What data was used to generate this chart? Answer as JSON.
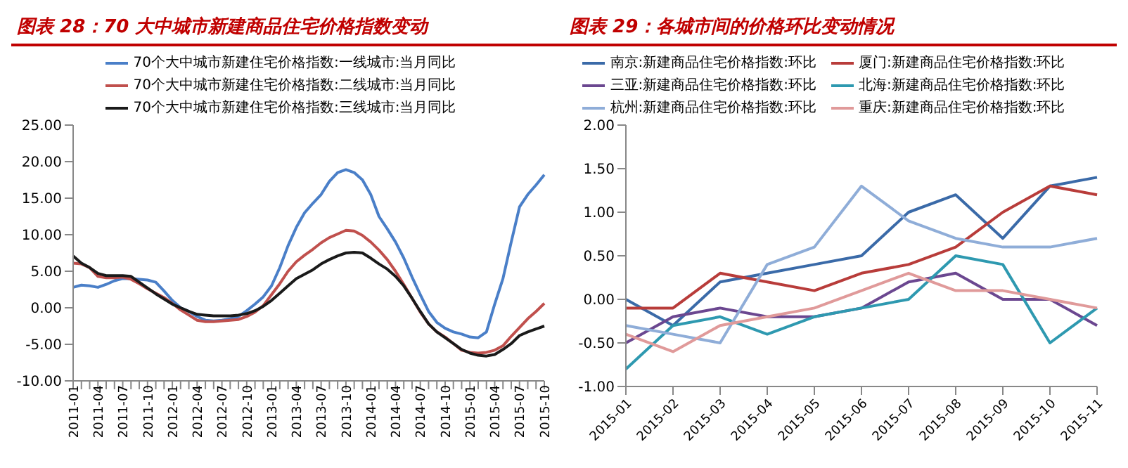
{
  "chart_data": [
    {
      "type": "line",
      "title": "图表 28：70 大中城市新建商品住宅价格指数变动",
      "categories": [
        "2011-01",
        null,
        null,
        "2011-04",
        null,
        null,
        "2011-07",
        null,
        null,
        "2011-10",
        null,
        null,
        "2012-01",
        null,
        null,
        "2012-04",
        null,
        null,
        "2012-07",
        null,
        null,
        "2012-10",
        null,
        null,
        "2013-01",
        null,
        null,
        "2013-04",
        null,
        null,
        "2013-07",
        null,
        null,
        "2013-10",
        null,
        null,
        "2014-01",
        null,
        null,
        "2014-04",
        null,
        null,
        "2014-07",
        null,
        null,
        "2014-10",
        null,
        null,
        "2015-01",
        null,
        null,
        "2015-04",
        null,
        null,
        "2015-07",
        null,
        null,
        "2015-10"
      ],
      "series": [
        {
          "name": "70个大中城市新建住宅价格指数:一线城市:当月同比",
          "color": "#4a7fc8",
          "values": [
            2.8,
            3.1,
            3.0,
            2.8,
            3.2,
            3.7,
            4.0,
            4.0,
            3.9,
            3.8,
            3.5,
            2.3,
            1.0,
            0,
            -0.5,
            -1.2,
            -1.7,
            -1.8,
            -1.7,
            -1.5,
            -1.2,
            -0.4,
            0.5,
            1.5,
            3.0,
            5.5,
            8.5,
            11,
            13,
            14.3,
            15.5,
            17.3,
            18.5,
            18.9,
            18.5,
            17.5,
            15.5,
            12.5,
            10.8,
            9.0,
            6.8,
            4.2,
            1.8,
            -0.5,
            -2.0,
            -2.8,
            -3.3,
            -3.6,
            -4.0,
            -4.1,
            -3.3,
            0.5,
            4,
            9,
            13.8,
            15.5,
            16.8,
            18.2
          ]
        },
        {
          "name": "70个大中城市新建住宅价格指数:二线城市:当月同比",
          "color": "#c0504d",
          "values": [
            6.1,
            6.0,
            5.5,
            4.3,
            4.1,
            4.1,
            4.2,
            3.9,
            3.3,
            2.6,
            2.0,
            1.4,
            0.6,
            -0.3,
            -1.0,
            -1.7,
            -1.9,
            -1.9,
            -1.8,
            -1.7,
            -1.6,
            -1.2,
            -0.6,
            0.3,
            1.8,
            3.3,
            5.0,
            6.3,
            7.2,
            8.0,
            8.9,
            9.6,
            10.1,
            10.6,
            10.5,
            9.9,
            9.0,
            7.9,
            6.6,
            5.0,
            3.2,
            1.3,
            -0.6,
            -2.2,
            -3.3,
            -4.0,
            -4.9,
            -5.8,
            -6.1,
            -6.2,
            -6.1,
            -5.8,
            -5.2,
            -3.9,
            -2.7,
            -1.5,
            -0.5,
            0.6
          ]
        },
        {
          "name": "70个大中城市新建住宅价格指数:三线城市:当月同比",
          "color": "#1a1a1a",
          "values": [
            7.1,
            6.1,
            5.5,
            4.7,
            4.4,
            4.4,
            4.4,
            4.3,
            3.5,
            2.7,
            1.9,
            1.2,
            0.5,
            0,
            -0.5,
            -0.9,
            -1.0,
            -1.1,
            -1.1,
            -1.1,
            -1.0,
            -0.8,
            -0.4,
            0.2,
            1.0,
            2.0,
            3.0,
            4.0,
            4.6,
            5.2,
            6.0,
            6.6,
            7.1,
            7.5,
            7.6,
            7.5,
            6.8,
            6.0,
            5.3,
            4.3,
            3.0,
            1.3,
            -0.5,
            -2.2,
            -3.3,
            -4.1,
            -4.9,
            -5.7,
            -6.2,
            -6.5,
            -6.6,
            -6.4,
            -5.7,
            -4.9,
            -3.8,
            -3.3,
            -2.9,
            -2.5
          ]
        }
      ],
      "ylim": [
        -10,
        25
      ],
      "yticks": [
        {
          "value": -10,
          "label": "-10.00"
        },
        {
          "value": -5,
          "label": "-5.00"
        },
        {
          "value": 0,
          "label": "0.00"
        },
        {
          "value": 5,
          "label": "5.00"
        },
        {
          "value": 10,
          "label": "10.00"
        },
        {
          "value": 15,
          "label": "15.00"
        },
        {
          "value": 20,
          "label": "20.00"
        },
        {
          "value": 25,
          "label": "25.00"
        }
      ],
      "legend": "top",
      "marker": "none",
      "line_style": "solid"
    },
    {
      "type": "line",
      "title": "图表 29：各城市间的价格环比变动情况",
      "categories": [
        "2015-01",
        "2015-02",
        "2015-03",
        "2015-04",
        "2015-05",
        "2015-06",
        "2015-07",
        "2015-08",
        "2015-09",
        "2015-10",
        "2015-11"
      ],
      "series": [
        {
          "name": "南京:新建商品住宅价格指数:环比",
          "color": "#3a6aa8",
          "values": [
            0,
            -0.3,
            0.2,
            0.3,
            0.4,
            0.5,
            1.0,
            1.2,
            0.7,
            1.3,
            1.4
          ]
        },
        {
          "name": "厦门:新建商品住宅价格指数:环比",
          "color": "#b83c3a",
          "values": [
            -0.1,
            -0.1,
            0.3,
            0.2,
            0.1,
            0.3,
            0.4,
            0.6,
            1.0,
            1.3,
            1.2
          ]
        },
        {
          "name": "三亚:新建商品住宅价格指数:环比",
          "color": "#6b4790",
          "values": [
            -0.5,
            -0.2,
            -0.1,
            -0.2,
            -0.2,
            -0.1,
            0.2,
            0.3,
            0,
            0,
            -0.3
          ]
        },
        {
          "name": "北海:新建商品住宅价格指数:环比",
          "color": "#2e99b0",
          "values": [
            -0.8,
            -0.3,
            -0.2,
            -0.4,
            -0.2,
            -0.1,
            0,
            0.5,
            0.4,
            -0.5,
            -0.1
          ]
        },
        {
          "name": "杭州:新建商品住宅价格指数:环比",
          "color": "#8fadd8",
          "values": [
            -0.3,
            -0.4,
            -0.5,
            0.4,
            0.6,
            1.3,
            0.9,
            0.7,
            0.6,
            0.6,
            0.7
          ]
        },
        {
          "name": "重庆:新建商品住宅价格指数:环比",
          "color": "#e09a9a",
          "values": [
            -0.4,
            -0.6,
            -0.3,
            -0.2,
            -0.1,
            0.1,
            0.3,
            0.1,
            0.1,
            0,
            -0.1
          ]
        }
      ],
      "ylim": [
        -1,
        2
      ],
      "yticks": [
        {
          "value": -1,
          "label": "-1.00"
        },
        {
          "value": -0.5,
          "label": "-0.50"
        },
        {
          "value": 0,
          "label": "0.00"
        },
        {
          "value": 0.5,
          "label": "0.50"
        },
        {
          "value": 1,
          "label": "1.00"
        },
        {
          "value": 1.5,
          "label": "1.50"
        },
        {
          "value": 2,
          "label": "2.00"
        }
      ],
      "legend": "top",
      "marker": "none",
      "line_style": "solid"
    }
  ]
}
